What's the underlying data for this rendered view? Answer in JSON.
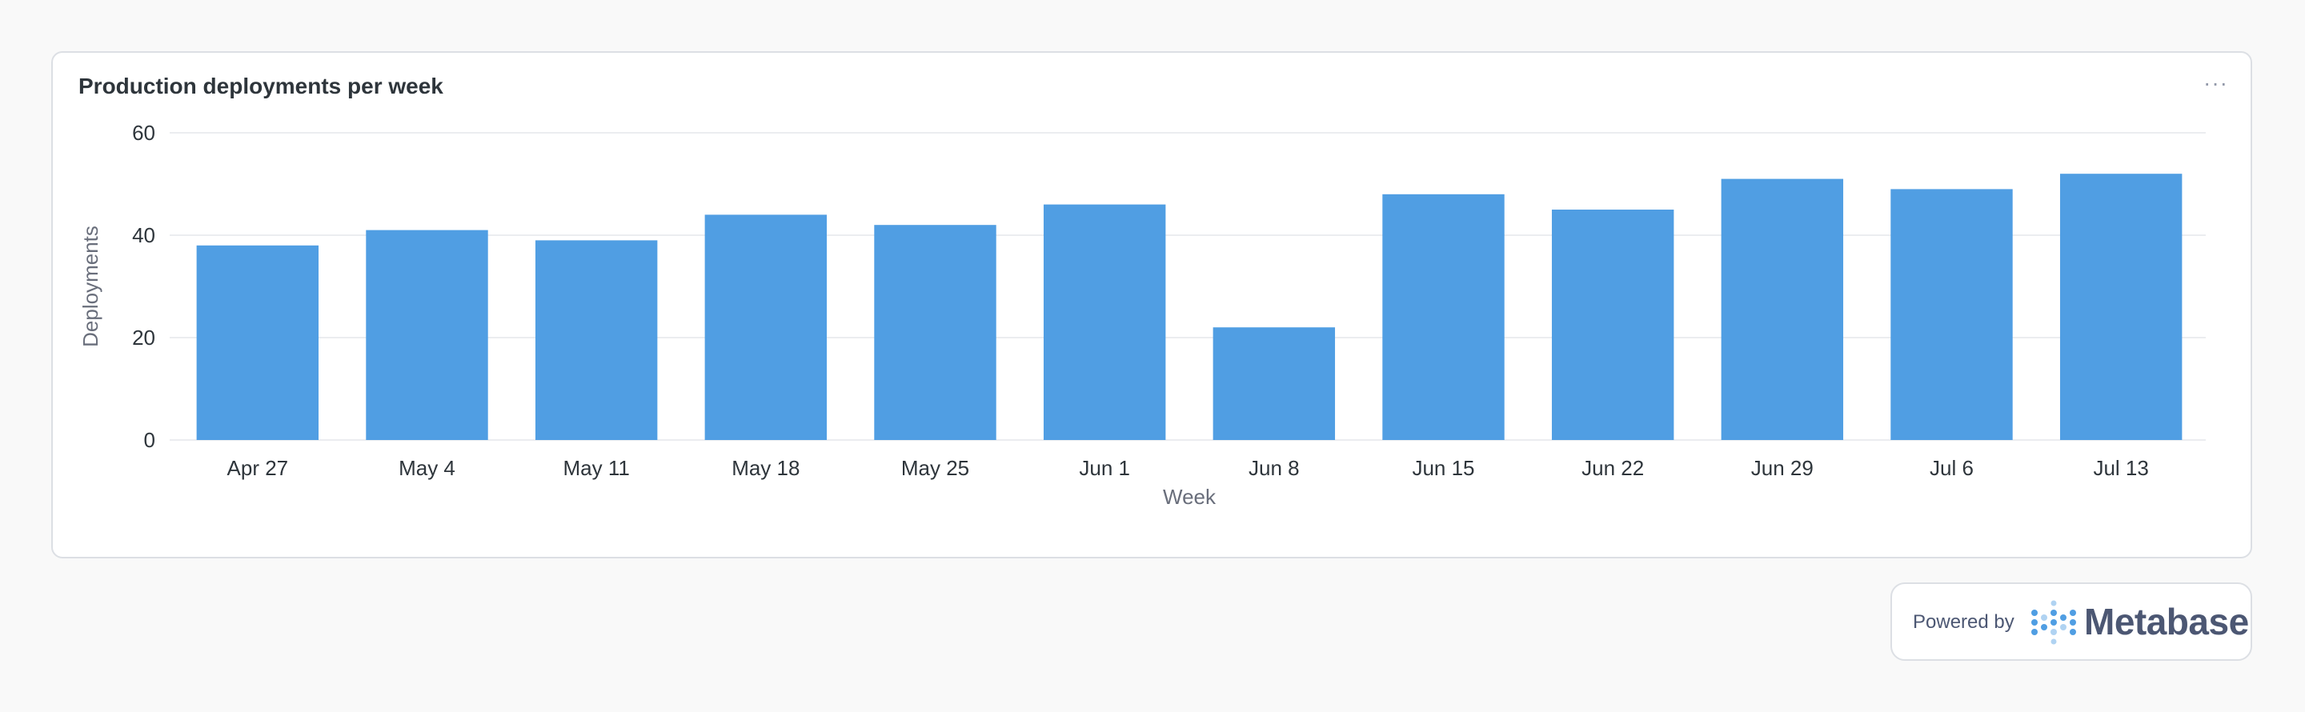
{
  "card": {
    "title": "Production deployments per week",
    "menu_icon": "ellipsis-icon"
  },
  "powered_by": {
    "label": "Powered by",
    "brand": "Metabase",
    "logo_icon": "metabase-logo-icon"
  },
  "colors": {
    "bar": "#509ee3",
    "grid": "#ebedf0",
    "axis_text": "#2e353b",
    "axis_label": "#696e7b"
  },
  "chart_data": {
    "type": "bar",
    "title": "Production deployments per week",
    "xlabel": "Week",
    "ylabel": "Deployments",
    "categories": [
      "Apr 27",
      "May 4",
      "May 11",
      "May 18",
      "May 25",
      "Jun 1",
      "Jun 8",
      "Jun 15",
      "Jun 22",
      "Jun 29",
      "Jul 6",
      "Jul 13"
    ],
    "values": [
      38,
      41,
      39,
      44,
      42,
      46,
      22,
      48,
      45,
      51,
      49,
      52
    ],
    "ylim": [
      0,
      60
    ],
    "yticks": [
      0,
      20,
      40,
      60
    ],
    "grid": true,
    "legend": "none"
  }
}
